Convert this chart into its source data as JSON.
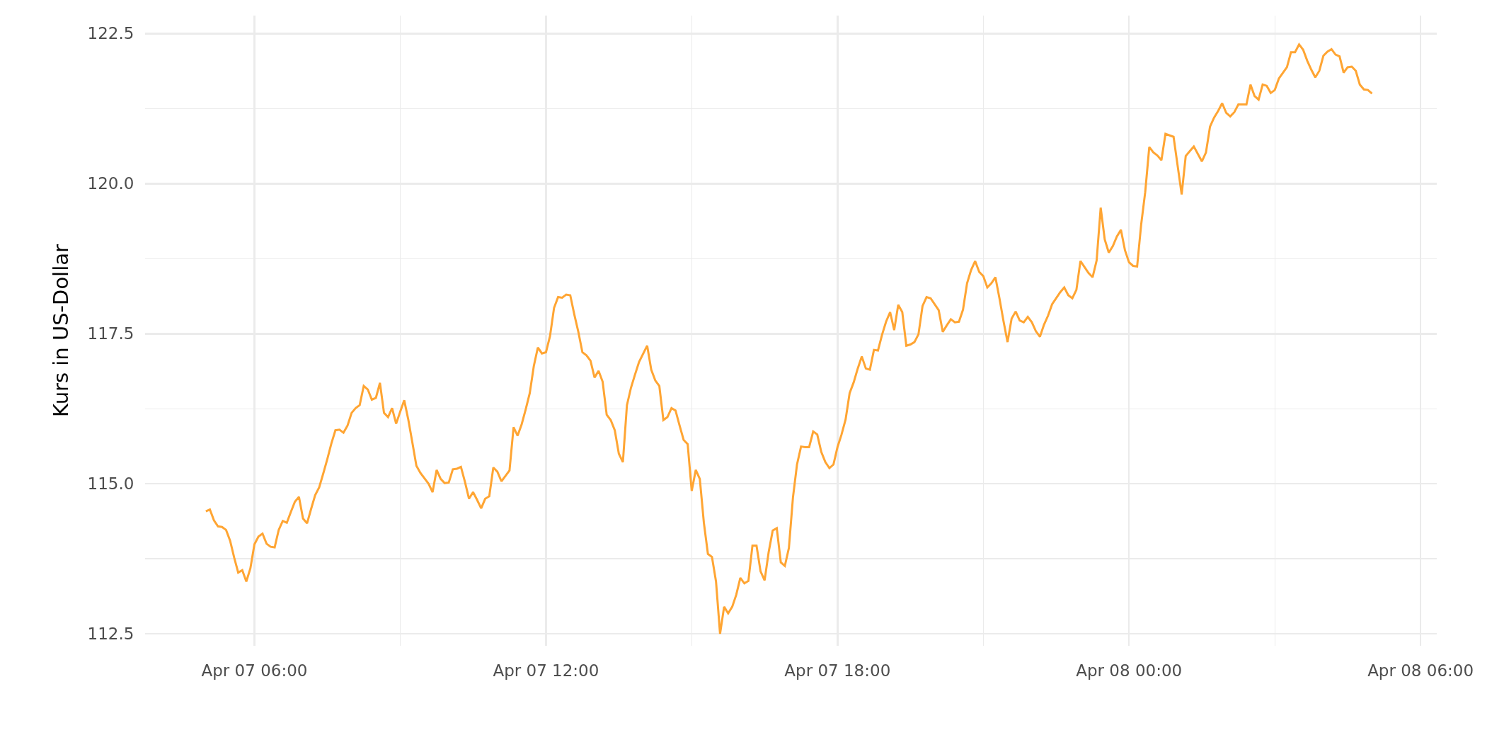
{
  "chart_data": {
    "type": "line",
    "ylabel": "Kurs in US-Dollar",
    "grid": true,
    "x": [
      "--04-07T05:00",
      "--04-07T05:05",
      "--04-07T05:10",
      "--04-07T05:15",
      "--04-07T05:20",
      "--04-07T05:25",
      "--04-07T05:30",
      "--04-07T05:35",
      "--04-07T05:40",
      "--04-07T05:45",
      "--04-07T05:50",
      "--04-07T05:55",
      "--04-07T06:00",
      "--04-07T06:05",
      "--04-07T06:10",
      "--04-07T06:15",
      "--04-07T06:20",
      "--04-07T06:25",
      "--04-07T06:30",
      "--04-07T06:35",
      "--04-07T06:40",
      "--04-07T06:45",
      "--04-07T06:50",
      "--04-07T06:55",
      "--04-07T07:00",
      "--04-07T07:05",
      "--04-07T07:10",
      "--04-07T07:15",
      "--04-07T07:20",
      "--04-07T07:25",
      "--04-07T07:30",
      "--04-07T07:35",
      "--04-07T07:40",
      "--04-07T07:45",
      "--04-07T07:50",
      "--04-07T07:55",
      "--04-07T08:00",
      "--04-07T08:05",
      "--04-07T08:10",
      "--04-07T08:15",
      "--04-07T08:20",
      "--04-07T08:25",
      "--04-07T08:30",
      "--04-07T08:35",
      "--04-07T08:40",
      "--04-07T08:45",
      "--04-07T08:50",
      "--04-07T08:55",
      "--04-07T09:00",
      "--04-07T09:05",
      "--04-07T09:10",
      "--04-07T09:15",
      "--04-07T09:20",
      "--04-07T09:25",
      "--04-07T09:35",
      "--04-07T09:40",
      "--04-07T09:45",
      "--04-07T09:50",
      "--04-07T09:55",
      "--04-07T10:00",
      "--04-07T10:05",
      "--04-07T10:10",
      "--04-07T10:15",
      "--04-07T10:20",
      "--04-07T10:25",
      "--04-07T10:30",
      "--04-07T10:35",
      "--04-07T10:40",
      "--04-07T10:45",
      "--04-07T10:50",
      "--04-07T10:55",
      "--04-07T11:00",
      "--04-07T11:05",
      "--04-07T11:10",
      "--04-07T11:15",
      "--04-07T11:20",
      "--04-07T11:25",
      "--04-07T11:30",
      "--04-07T11:35",
      "--04-07T11:40",
      "--04-07T11:45",
      "--04-07T11:50",
      "--04-07T11:55",
      "--04-07T12:00",
      "--04-07T12:05",
      "--04-07T12:10",
      "--04-07T12:15",
      "--04-07T12:20",
      "--04-07T12:25",
      "--04-07T12:30",
      "--04-07T12:35",
      "--04-07T12:40",
      "--04-07T12:45",
      "--04-07T12:50",
      "--04-07T12:55",
      "--04-07T13:00",
      "--04-07T13:05",
      "--04-07T13:10",
      "--04-07T13:15",
      "--04-07T13:20",
      "--04-07T13:25",
      "--04-07T13:30",
      "--04-07T13:35",
      "--04-07T13:40",
      "--04-07T13:45",
      "--04-07T13:50",
      "--04-07T13:55",
      "--04-07T14:05",
      "--04-07T14:10",
      "--04-07T14:15",
      "--04-07T14:20",
      "--04-07T14:25",
      "--04-07T14:30",
      "--04-07T14:35",
      "--04-07T14:40",
      "--04-07T14:45",
      "--04-07T14:50",
      "--04-07T14:55",
      "--04-07T15:00",
      "--04-07T15:05",
      "--04-07T15:10",
      "--04-07T15:15",
      "--04-07T15:20",
      "--04-07T15:25",
      "--04-07T15:30",
      "--04-07T15:35",
      "--04-07T15:40",
      "--04-07T15:45",
      "--04-07T15:50",
      "--04-07T15:55",
      "--04-07T16:00",
      "--04-07T16:05",
      "--04-07T16:10",
      "--04-07T16:15",
      "--04-07T16:20",
      "--04-07T16:25",
      "--04-07T16:30",
      "--04-07T16:35",
      "--04-07T16:40",
      "--04-07T16:45",
      "--04-07T16:50",
      "--04-07T16:55",
      "--04-07T17:00",
      "--04-07T17:05",
      "--04-07T17:10",
      "--04-07T17:15",
      "--04-07T17:20",
      "--04-07T17:25",
      "--04-07T17:30",
      "--04-07T17:35",
      "--04-07T17:40",
      "--04-07T17:45",
      "--04-07T17:50",
      "--04-07T17:55",
      "--04-07T18:00",
      "--04-07T18:05",
      "--04-07T18:10",
      "--04-07T18:15",
      "--04-07T18:20",
      "--04-07T18:25",
      "--04-07T18:30",
      "--04-07T18:35",
      "--04-07T18:40",
      "--04-07T18:45",
      "--04-07T18:50",
      "--04-07T18:55",
      "--04-07T19:00",
      "--04-07T19:05",
      "--04-07T19:10",
      "--04-07T19:15",
      "--04-07T19:20",
      "--04-07T19:25",
      "--04-07T19:30",
      "--04-07T19:35",
      "--04-07T19:40",
      "--04-07T19:45",
      "--04-07T19:50",
      "--04-07T19:55",
      "--04-07T20:05",
      "--04-07T20:10",
      "--04-07T20:15",
      "--04-07T20:20",
      "--04-07T20:25",
      "--04-07T20:30",
      "--04-07T20:35",
      "--04-07T20:40",
      "--04-07T20:45",
      "--04-07T20:50",
      "--04-07T20:55",
      "--04-07T21:00",
      "--04-07T21:05",
      "--04-07T21:10",
      "--04-07T21:15",
      "--04-07T21:20",
      "--04-07T21:25",
      "--04-07T21:30",
      "--04-07T21:35",
      "--04-07T21:40",
      "--04-07T21:45",
      "--04-07T21:50",
      "--04-07T21:55",
      "--04-07T22:00",
      "--04-07T22:05",
      "--04-07T22:10",
      "--04-07T22:15",
      "--04-07T22:20",
      "--04-07T22:25",
      "--04-07T22:35",
      "--04-07T22:40",
      "--04-07T22:45",
      "--04-07T22:50",
      "--04-07T22:55",
      "--04-07T23:00",
      "--04-07T23:05",
      "--04-07T23:10",
      "--04-07T23:15",
      "--04-07T23:20",
      "--04-07T23:25",
      "--04-07T23:30",
      "--04-07T23:35",
      "--04-07T23:40",
      "--04-07T23:45",
      "--04-07T23:50",
      "--04-07T23:55",
      "--04-08T00:00",
      "--04-08T00:05",
      "--04-08T00:10",
      "--04-08T00:15",
      "--04-08T00:20",
      "--04-08T00:25",
      "--04-08T00:30",
      "--04-08T00:35",
      "--04-08T00:40",
      "--04-08T00:45",
      "--04-08T00:55",
      "--04-08T01:00",
      "--04-08T01:05",
      "--04-08T01:10",
      "--04-08T01:15",
      "--04-08T01:20",
      "--04-08T01:30",
      "--04-08T01:35",
      "--04-08T01:40",
      "--04-08T01:45",
      "--04-08T01:50",
      "--04-08T01:55",
      "--04-08T02:00",
      "--04-08T02:05",
      "--04-08T02:10",
      "--04-08T02:15",
      "--04-08T02:25",
      "--04-08T02:30",
      "--04-08T02:35",
      "--04-08T02:40",
      "--04-08T02:45",
      "--04-08T02:50",
      "--04-08T02:55",
      "--04-08T03:00",
      "--04-08T03:05",
      "--04-08T03:15",
      "--04-08T03:20",
      "--04-08T03:25",
      "--04-08T03:30",
      "--04-08T03:35",
      "--04-08T03:40",
      "--04-08T03:45",
      "--04-08T03:50",
      "--04-08T03:55",
      "--04-08T04:00",
      "--04-08T04:05",
      "--04-08T04:10",
      "--04-08T04:15",
      "--04-08T04:20",
      "--04-08T04:25",
      "--04-08T04:30",
      "--04-08T04:35",
      "--04-08T04:40",
      "--04-08T04:45",
      "--04-08T04:50",
      "--04-08T04:55",
      "--04-08T05:00"
    ],
    "series": [
      {
        "color": "#ffa533",
        "values": [
          114.54,
          114.57,
          114.39,
          114.29,
          114.28,
          114.23,
          114.05,
          113.77,
          113.52,
          113.56,
          113.37,
          113.59,
          113.99,
          114.12,
          114.17,
          114.0,
          113.95,
          113.94,
          114.23,
          114.38,
          114.35,
          114.53,
          114.7,
          114.78,
          114.42,
          114.34,
          114.58,
          114.81,
          114.94,
          115.17,
          115.41,
          115.67,
          115.89,
          115.9,
          115.85,
          115.97,
          116.18,
          116.26,
          116.31,
          116.63,
          116.57,
          116.4,
          116.43,
          116.68,
          116.18,
          116.11,
          116.26,
          116.0,
          116.2,
          116.39,
          116.07,
          115.69,
          115.3,
          115.18,
          115.0,
          114.86,
          115.23,
          115.08,
          115.01,
          115.02,
          115.24,
          115.25,
          115.28,
          115.03,
          114.75,
          114.86,
          114.73,
          114.59,
          114.75,
          114.79,
          115.27,
          115.2,
          115.04,
          115.13,
          115.22,
          115.94,
          115.8,
          115.99,
          116.24,
          116.51,
          116.96,
          117.27,
          117.17,
          117.19,
          117.46,
          117.93,
          118.11,
          118.1,
          118.15,
          118.14,
          117.82,
          117.53,
          117.19,
          117.14,
          117.05,
          116.77,
          116.88,
          116.7,
          116.15,
          116.06,
          115.89,
          115.5,
          115.36,
          116.31,
          116.6,
          116.82,
          117.03,
          117.3,
          116.9,
          116.72,
          116.63,
          116.06,
          116.11,
          116.26,
          116.22,
          115.97,
          115.73,
          115.66,
          114.88,
          115.23,
          115.08,
          114.35,
          113.83,
          113.78,
          113.37,
          112.5,
          112.95,
          112.84,
          112.95,
          113.15,
          113.43,
          113.34,
          113.38,
          113.97,
          113.97,
          113.54,
          113.39,
          113.86,
          114.22,
          114.26,
          113.69,
          113.63,
          113.93,
          114.77,
          115.32,
          115.62,
          115.61,
          115.61,
          115.87,
          115.82,
          115.53,
          115.36,
          115.26,
          115.32,
          115.61,
          115.82,
          116.07,
          116.51,
          116.69,
          116.92,
          117.12,
          116.92,
          116.9,
          117.23,
          117.22,
          117.48,
          117.7,
          117.86,
          117.56,
          117.98,
          117.86,
          117.3,
          117.32,
          117.36,
          117.49,
          117.96,
          118.11,
          118.09,
          117.89,
          117.53,
          117.64,
          117.74,
          117.69,
          117.7,
          117.9,
          118.34,
          118.56,
          118.71,
          118.53,
          118.46,
          118.27,
          118.34,
          118.44,
          118.09,
          117.71,
          117.36,
          117.75,
          117.87,
          117.72,
          117.69,
          117.78,
          117.69,
          117.54,
          117.45,
          117.65,
          117.8,
          117.99,
          118.19,
          118.27,
          118.14,
          118.09,
          118.23,
          118.71,
          118.61,
          118.51,
          118.44,
          118.72,
          119.6,
          119.07,
          118.85,
          118.96,
          119.12,
          119.23,
          118.89,
          118.69,
          118.63,
          118.62,
          119.32,
          119.86,
          120.61,
          120.52,
          120.47,
          120.39,
          120.83,
          120.78,
          120.3,
          119.82,
          120.46,
          120.54,
          120.62,
          120.37,
          120.52,
          120.95,
          121.1,
          121.21,
          121.34,
          121.18,
          121.12,
          121.19,
          121.32,
          121.32,
          121.65,
          121.46,
          121.4,
          121.65,
          121.63,
          121.51,
          121.56,
          121.75,
          121.94,
          122.19,
          122.19,
          122.32,
          122.23,
          122.05,
          121.9,
          121.77,
          121.88,
          122.13,
          122.2,
          122.24,
          122.15,
          122.12,
          121.85,
          121.94,
          121.95,
          121.88,
          121.65,
          121.57,
          121.56,
          121.5
        ]
      }
    ],
    "xlim": [
      "--04-07T03:45",
      "--04-08T06:20"
    ],
    "xticks": [
      {
        "value": "--04-07T06:00",
        "label": "Apr 07 06:00"
      },
      {
        "value": "--04-07T09:00",
        "label": null
      },
      {
        "value": "--04-07T12:00",
        "label": "Apr 07 12:00"
      },
      {
        "value": "--04-07T15:00",
        "label": null
      },
      {
        "value": "--04-07T18:00",
        "label": "Apr 07 18:00"
      },
      {
        "value": "--04-07T21:00",
        "label": null
      },
      {
        "value": "--04-08T00:00",
        "label": "Apr 08 00:00"
      },
      {
        "value": "--04-08T03:00",
        "label": null
      },
      {
        "value": "--04-08T06:00",
        "label": "Apr 08 06:00"
      }
    ],
    "ylim": [
      112.3,
      122.8
    ],
    "yticks": [
      112.5,
      {
        "value": 113.75,
        "label": null
      },
      {
        "value": 115,
        "label": "115.0"
      },
      {
        "value": 116.25,
        "label": null
      },
      117.5,
      {
        "value": 118.75,
        "label": null
      },
      {
        "value": 120,
        "label": "120.0"
      },
      {
        "value": 121.25,
        "label": null
      },
      122.5
    ]
  }
}
